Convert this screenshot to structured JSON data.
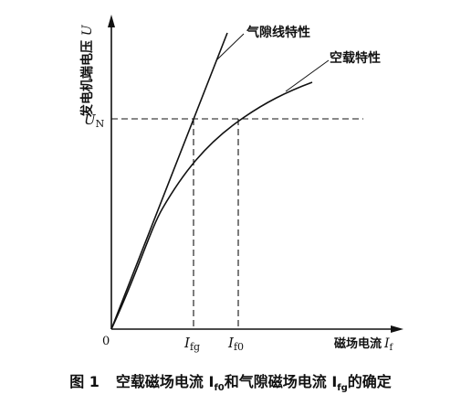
{
  "figure": {
    "y_axis_label": "发电机端电压",
    "y_axis_symbol": "U",
    "x_axis_label": "磁场电流",
    "x_axis_symbol": "I",
    "x_axis_subscript": "f",
    "origin_label": "0",
    "un_label": "U",
    "un_subscript": "N",
    "ifg_label": "I",
    "ifg_subscript": "fg",
    "if0_label": "I",
    "if0_subscript": "f0",
    "airgap_curve_label": "气隙线特性",
    "noload_curve_label": "空载特性",
    "caption_prefix": "图 1",
    "caption_text": "空载磁场电流 I",
    "caption_sub1": "f0",
    "caption_mid": "和气隙磁场电流 I",
    "caption_sub2": "fg",
    "caption_end": "的确定"
  }
}
